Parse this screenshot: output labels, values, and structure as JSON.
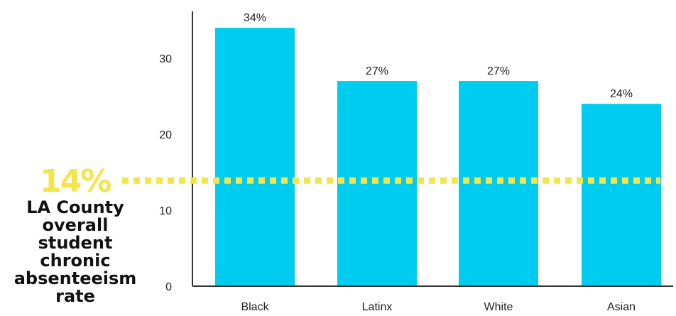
{
  "chart_data": {
    "type": "bar",
    "categories": [
      "Black",
      "Latinx",
      "White",
      "Asian"
    ],
    "values": [
      34,
      27,
      27,
      24
    ],
    "data_labels": [
      "34%",
      "27%",
      "27%",
      "24%"
    ],
    "ylim": [
      0,
      36
    ],
    "yticks": [
      0,
      10,
      20,
      30
    ],
    "grid": false,
    "reference_line": {
      "value": 14,
      "value_label": "14%",
      "label": "LA County overall student chronic absenteeism rate",
      "label_lines": [
        "LA County",
        "overall",
        "student",
        "chronic",
        "absenteeism",
        "rate"
      ],
      "style": "dotted"
    },
    "colors": {
      "bar": "#00ccef",
      "reference": "#f2e64a",
      "text": "#222222",
      "axis": "#333333"
    }
  }
}
